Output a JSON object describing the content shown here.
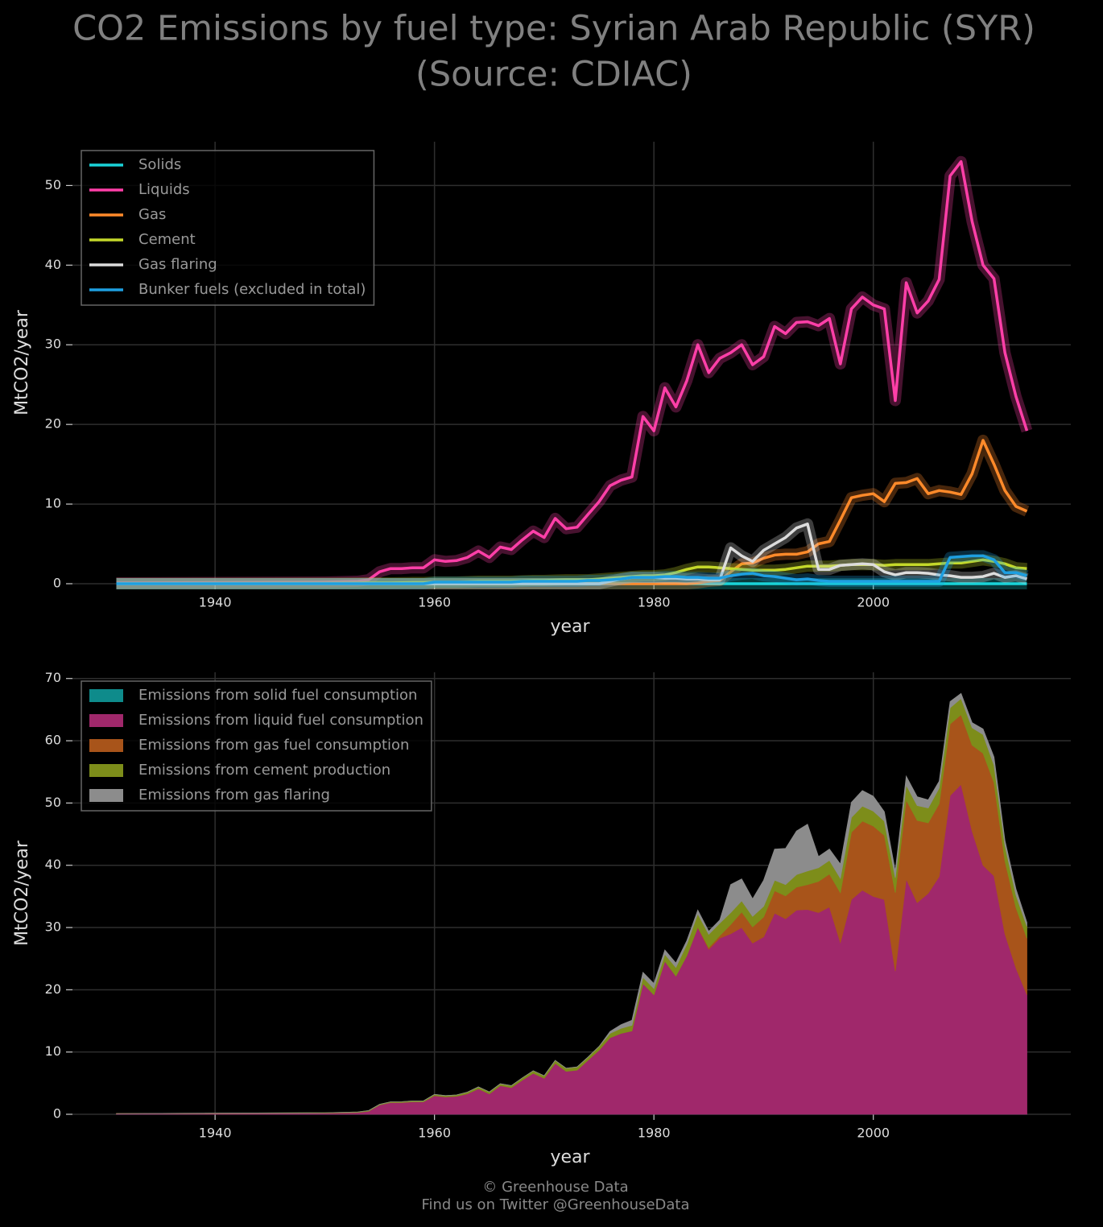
{
  "title": "CO2 Emissions by fuel type: Syrian Arab Republic (SYR)",
  "subtitle": "(Source: CDIAC)",
  "footer": [
    "© Greenhouse Data",
    "Find us on Twitter @GreenhouseData"
  ],
  "chart_data": [
    {
      "type": "line",
      "xlabel": "year",
      "ylabel": "MtCO2/year",
      "xlim": [
        1927,
        2018
      ],
      "xticks": [
        1940,
        1960,
        1980,
        2000
      ],
      "ylim": [
        0,
        55.5
      ],
      "yticks": [
        0,
        10,
        20,
        30,
        40,
        50
      ],
      "grid": true,
      "legend": "upper left",
      "x": [
        1931,
        1950,
        1953,
        1954,
        1955,
        1956,
        1957,
        1958,
        1959,
        1960,
        1961,
        1962,
        1963,
        1964,
        1965,
        1966,
        1967,
        1968,
        1969,
        1970,
        1971,
        1972,
        1973,
        1974,
        1975,
        1976,
        1977,
        1978,
        1979,
        1980,
        1981,
        1982,
        1983,
        1984,
        1985,
        1986,
        1987,
        1988,
        1989,
        1990,
        1991,
        1992,
        1993,
        1994,
        1995,
        1996,
        1997,
        1998,
        1999,
        2000,
        2001,
        2002,
        2003,
        2004,
        2005,
        2006,
        2007,
        2008,
        2009,
        2010,
        2011,
        2012,
        2013,
        2014
      ],
      "series": [
        {
          "name": "Solids",
          "color": "#1ad3d8",
          "values": [
            0,
            0,
            0,
            0,
            0,
            0,
            0,
            0,
            0,
            0,
            0,
            0,
            0,
            0,
            0,
            0,
            0,
            0,
            0,
            0,
            0,
            0,
            0,
            0,
            0,
            0,
            0,
            0,
            0,
            0,
            0,
            0,
            0,
            0,
            0,
            0,
            0,
            0,
            0,
            0,
            0,
            0,
            0,
            0,
            0,
            0,
            0,
            0,
            0,
            0,
            0,
            0,
            0,
            0,
            0,
            0,
            0,
            0,
            0,
            0,
            0,
            0,
            0,
            0
          ]
        },
        {
          "name": "Liquids",
          "color": "#ff3fa8",
          "values": [
            0.1,
            0.2,
            0.3,
            0.5,
            1.5,
            1.9,
            1.9,
            2.0,
            2.0,
            3.0,
            2.8,
            2.9,
            3.3,
            4.1,
            3.3,
            4.6,
            4.3,
            5.5,
            6.6,
            5.8,
            8.2,
            6.9,
            7.1,
            8.7,
            10.3,
            12.3,
            13.0,
            13.4,
            21.0,
            19.2,
            24.6,
            22.2,
            25.5,
            30.0,
            26.5,
            28.3,
            29.0,
            30.0,
            27.5,
            28.5,
            32.3,
            31.4,
            32.8,
            32.9,
            32.4,
            33.3,
            27.6,
            34.5,
            36.0,
            35.0,
            34.5,
            23.0,
            37.8,
            34.0,
            35.5,
            38.2,
            51.2,
            53.0,
            45.5,
            40.0,
            38.3,
            29.0,
            23.5,
            19.2
          ]
        },
        {
          "name": "Gas",
          "color": "#ff8a2a",
          "values": [
            0,
            0,
            0,
            0,
            0,
            0,
            0,
            0,
            0,
            0,
            0,
            0,
            0,
            0,
            0,
            0,
            0,
            0,
            0,
            0,
            0,
            0,
            0,
            0,
            0,
            0,
            0,
            0,
            0,
            0,
            0,
            0,
            0,
            0.1,
            0.3,
            0.4,
            1.5,
            2.5,
            2.6,
            3.2,
            3.6,
            3.7,
            3.7,
            4.0,
            5.0,
            5.3,
            8.0,
            10.8,
            11.1,
            11.3,
            10.3,
            12.6,
            12.7,
            13.2,
            11.3,
            11.7,
            11.5,
            11.2,
            13.8,
            18.0,
            15.0,
            11.7,
            9.7,
            9.1
          ]
        },
        {
          "name": "Cement",
          "color": "#c4d82a",
          "values": [
            0.02,
            0.05,
            0.08,
            0.1,
            0.1,
            0.1,
            0.12,
            0.15,
            0.15,
            0.2,
            0.2,
            0.2,
            0.25,
            0.3,
            0.3,
            0.3,
            0.3,
            0.35,
            0.4,
            0.4,
            0.45,
            0.5,
            0.5,
            0.5,
            0.6,
            0.7,
            0.8,
            0.9,
            1.0,
            1.0,
            1.1,
            1.4,
            1.8,
            2.1,
            2.1,
            2.0,
            1.9,
            1.8,
            1.7,
            1.7,
            1.7,
            1.8,
            2.0,
            2.2,
            2.2,
            2.2,
            2.3,
            2.4,
            2.4,
            2.4,
            2.3,
            2.4,
            2.4,
            2.4,
            2.4,
            2.5,
            2.6,
            2.6,
            2.8,
            3.0,
            2.8,
            2.5,
            2.0,
            1.9
          ]
        },
        {
          "name": "Gas flaring",
          "color": "#dcdcdc",
          "values": [
            0,
            0,
            0,
            0,
            0,
            0,
            0,
            0,
            0,
            0,
            0,
            0,
            0,
            0,
            0,
            0,
            0,
            0,
            0,
            0,
            0,
            0,
            0,
            0,
            0,
            0.3,
            0.6,
            0.8,
            0.8,
            0.8,
            0.7,
            0.7,
            0.6,
            0.6,
            0.5,
            0.5,
            4.5,
            3.5,
            2.8,
            4.2,
            5.0,
            5.8,
            7.0,
            7.5,
            1.8,
            1.8,
            2.3,
            2.4,
            2.5,
            2.4,
            1.5,
            1.1,
            1.4,
            1.4,
            1.3,
            1.1,
            1.0,
            0.8,
            0.8,
            0.9,
            1.3,
            0.8,
            1.0,
            0.6
          ]
        },
        {
          "name": "Bunker fuels (excluded in total)",
          "color": "#1e9fe0",
          "values": [
            0,
            0,
            0,
            0,
            0,
            0,
            0,
            0,
            0,
            0.2,
            0.2,
            0.2,
            0.2,
            0.2,
            0.2,
            0.2,
            0.2,
            0.3,
            0.3,
            0.3,
            0.3,
            0.3,
            0.3,
            0.4,
            0.4,
            0.5,
            0.6,
            0.8,
            0.8,
            0.8,
            0.9,
            0.9,
            0.8,
            0.8,
            0.7,
            0.7,
            1.0,
            1.2,
            1.3,
            1.0,
            0.9,
            0.7,
            0.5,
            0.6,
            0.4,
            0.3,
            0.3,
            0.3,
            0.3,
            0.3,
            0.3,
            0.3,
            0.3,
            0.3,
            0.3,
            0.3,
            3.3,
            3.4,
            3.5,
            3.5,
            3.0,
            1.4,
            1.4,
            1.0
          ]
        }
      ]
    },
    {
      "type": "area",
      "stacked": true,
      "xlabel": "year",
      "ylabel": "MtCO2/year",
      "xlim": [
        1927,
        2018
      ],
      "xticks": [
        1940,
        1960,
        1980,
        2000
      ],
      "ylim": [
        0,
        71
      ],
      "yticks": [
        0,
        10,
        20,
        30,
        40,
        50,
        60,
        70
      ],
      "grid": true,
      "legend": "upper left",
      "x": [
        1931,
        1950,
        1953,
        1954,
        1955,
        1956,
        1957,
        1958,
        1959,
        1960,
        1961,
        1962,
        1963,
        1964,
        1965,
        1966,
        1967,
        1968,
        1969,
        1970,
        1971,
        1972,
        1973,
        1974,
        1975,
        1976,
        1977,
        1978,
        1979,
        1980,
        1981,
        1982,
        1983,
        1984,
        1985,
        1986,
        1987,
        1988,
        1989,
        1990,
        1991,
        1992,
        1993,
        1994,
        1995,
        1996,
        1997,
        1998,
        1999,
        2000,
        2001,
        2002,
        2003,
        2004,
        2005,
        2006,
        2007,
        2008,
        2009,
        2010,
        2011,
        2012,
        2013,
        2014
      ],
      "series": [
        {
          "name": "Emissions from solid fuel consumption",
          "color": "#0e8b8b",
          "values": [
            0,
            0,
            0,
            0,
            0,
            0,
            0,
            0,
            0,
            0,
            0,
            0,
            0,
            0,
            0,
            0,
            0,
            0,
            0,
            0,
            0,
            0,
            0,
            0,
            0,
            0,
            0,
            0,
            0,
            0,
            0,
            0,
            0,
            0,
            0,
            0,
            0,
            0,
            0,
            0,
            0,
            0,
            0,
            0,
            0,
            0,
            0,
            0,
            0,
            0,
            0,
            0,
            0,
            0,
            0,
            0,
            0,
            0,
            0,
            0,
            0,
            0,
            0,
            0
          ]
        },
        {
          "name": "Emissions from liquid fuel consumption",
          "color": "#a0286b",
          "values": [
            0.1,
            0.2,
            0.3,
            0.5,
            1.5,
            1.9,
            1.9,
            2.0,
            2.0,
            3.0,
            2.8,
            2.9,
            3.3,
            4.1,
            3.3,
            4.6,
            4.3,
            5.5,
            6.6,
            5.8,
            8.2,
            6.9,
            7.1,
            8.7,
            10.3,
            12.3,
            13.0,
            13.4,
            21.0,
            19.2,
            24.6,
            22.2,
            25.5,
            30.0,
            26.5,
            28.3,
            29.0,
            30.0,
            27.5,
            28.5,
            32.3,
            31.4,
            32.8,
            32.9,
            32.4,
            33.3,
            27.6,
            34.5,
            36.0,
            35.0,
            34.5,
            23.0,
            37.8,
            34.0,
            35.5,
            38.2,
            51.2,
            53.0,
            45.5,
            40.0,
            38.3,
            29.0,
            23.5,
            19.2
          ]
        },
        {
          "name": "Emissions from gas fuel consumption",
          "color": "#a8541a",
          "values": [
            0,
            0,
            0,
            0,
            0,
            0,
            0,
            0,
            0,
            0,
            0,
            0,
            0,
            0,
            0,
            0,
            0,
            0,
            0,
            0,
            0,
            0,
            0,
            0,
            0,
            0,
            0,
            0,
            0,
            0,
            0,
            0,
            0,
            0.1,
            0.3,
            0.4,
            1.5,
            2.5,
            2.6,
            3.2,
            3.6,
            3.7,
            3.7,
            4.0,
            5.0,
            5.3,
            8.0,
            10.8,
            11.1,
            11.3,
            10.3,
            12.6,
            12.7,
            13.2,
            11.3,
            11.7,
            11.5,
            11.2,
            13.8,
            18.0,
            15.0,
            11.7,
            9.7,
            9.1
          ]
        },
        {
          "name": "Emissions from cement production",
          "color": "#7d8d1a",
          "values": [
            0.02,
            0.05,
            0.08,
            0.1,
            0.1,
            0.1,
            0.12,
            0.15,
            0.15,
            0.2,
            0.2,
            0.2,
            0.25,
            0.3,
            0.3,
            0.3,
            0.3,
            0.35,
            0.4,
            0.4,
            0.45,
            0.5,
            0.5,
            0.5,
            0.6,
            0.7,
            0.8,
            0.9,
            1.0,
            1.0,
            1.1,
            1.4,
            1.8,
            2.1,
            2.1,
            2.0,
            1.9,
            1.8,
            1.7,
            1.7,
            1.7,
            1.8,
            2.0,
            2.2,
            2.2,
            2.2,
            2.3,
            2.4,
            2.4,
            2.4,
            2.3,
            2.4,
            2.4,
            2.4,
            2.4,
            2.5,
            2.6,
            2.6,
            2.8,
            3.0,
            2.8,
            2.5,
            2.0,
            1.9
          ]
        },
        {
          "name": "Emissions from gas flaring",
          "color": "#8c8c8c",
          "values": [
            0,
            0,
            0,
            0,
            0,
            0,
            0,
            0,
            0,
            0,
            0,
            0,
            0,
            0,
            0,
            0,
            0,
            0,
            0,
            0,
            0,
            0,
            0,
            0,
            0,
            0.3,
            0.6,
            0.8,
            0.8,
            0.8,
            0.7,
            0.7,
            0.6,
            0.6,
            0.5,
            0.5,
            4.5,
            3.5,
            2.8,
            4.2,
            5.0,
            5.8,
            7.0,
            7.5,
            1.8,
            1.8,
            2.3,
            2.4,
            2.5,
            2.4,
            1.5,
            1.1,
            1.4,
            1.4,
            1.3,
            1.1,
            1.0,
            0.8,
            0.8,
            0.9,
            1.3,
            0.8,
            1.0,
            0.6
          ]
        }
      ]
    }
  ]
}
